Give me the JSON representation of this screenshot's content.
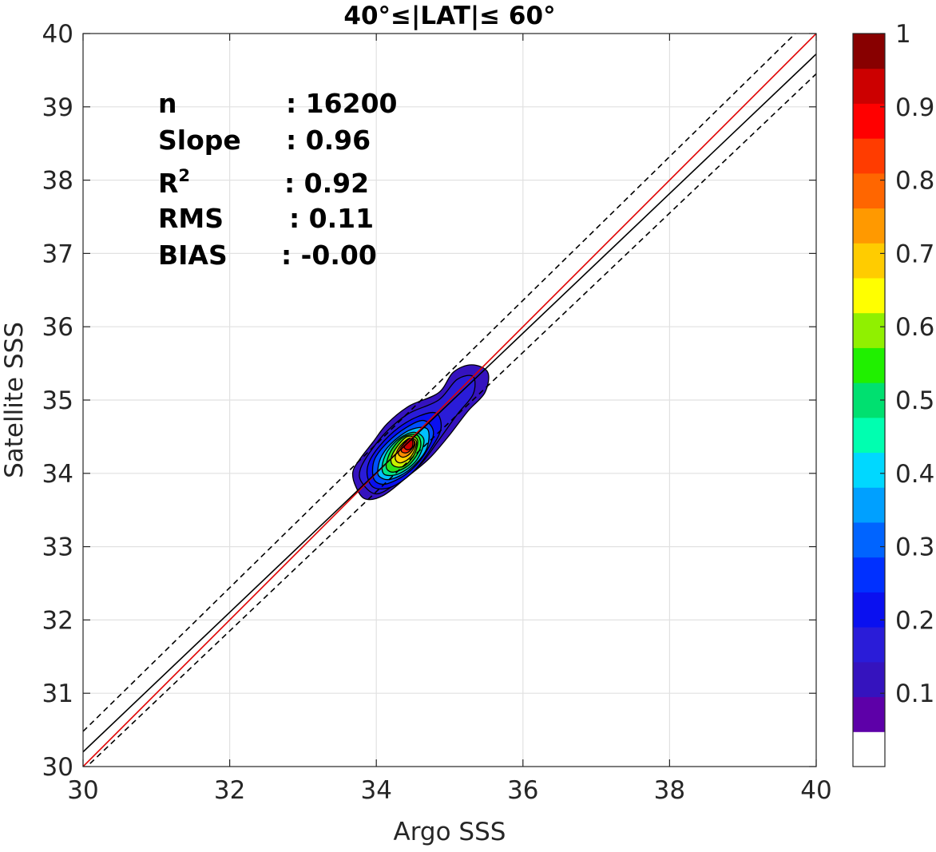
{
  "chart_data": {
    "type": "contour",
    "title": "40°≤|LAT|≤ 60°",
    "xlabel": "Argo SSS",
    "ylabel": "Satellite SSS",
    "xlim": [
      30,
      40
    ],
    "ylim": [
      30,
      40
    ],
    "x_ticks": [
      30,
      32,
      34,
      36,
      38,
      40
    ],
    "y_ticks": [
      30,
      31,
      32,
      33,
      34,
      35,
      36,
      37,
      38,
      39,
      40
    ],
    "grid": true,
    "stats": [
      {
        "label": "n",
        "sup": "",
        "value": ": 16200"
      },
      {
        "label": "Slope",
        "sup": "",
        "value": ": 0.96"
      },
      {
        "label": "R",
        "sup": "2",
        "value": ": 0.92"
      },
      {
        "label": "RMS",
        "sup": "",
        "value": ": 0.11"
      },
      {
        "label": "BIAS",
        "sup": "",
        "value": ": -0.00"
      }
    ],
    "lines": [
      {
        "role": "one-to-one",
        "color": "#e00000",
        "style": "solid",
        "points": [
          [
            30,
            30
          ],
          [
            40,
            40
          ]
        ]
      },
      {
        "role": "regression",
        "color": "#000000",
        "style": "solid",
        "points": [
          [
            30,
            30.2
          ],
          [
            40,
            39.72
          ]
        ]
      },
      {
        "role": "upper-bound",
        "color": "#000000",
        "style": "dashed",
        "points": [
          [
            30,
            30.48
          ],
          [
            40,
            40.28
          ]
        ]
      },
      {
        "role": "lower-bound",
        "color": "#000000",
        "style": "dashed",
        "points": [
          [
            30,
            29.95
          ],
          [
            40,
            39.45
          ]
        ]
      }
    ],
    "density_peak": {
      "x": 34.4,
      "y": 34.4
    },
    "contour_levels": [
      {
        "level": 0.05,
        "color": "#3513be",
        "path": [
          [
            33.72,
            33.82
          ],
          [
            33.68,
            34.02
          ],
          [
            33.78,
            34.2
          ],
          [
            33.95,
            34.42
          ],
          [
            34.15,
            34.68
          ],
          [
            34.45,
            34.92
          ],
          [
            34.85,
            35.1
          ],
          [
            35.05,
            35.38
          ],
          [
            35.3,
            35.48
          ],
          [
            35.52,
            35.38
          ],
          [
            35.48,
            35.1
          ],
          [
            35.25,
            34.85
          ],
          [
            34.98,
            34.5
          ],
          [
            34.72,
            34.2
          ],
          [
            34.42,
            33.95
          ],
          [
            34.1,
            33.7
          ],
          [
            33.85,
            33.65
          ]
        ]
      },
      {
        "level": 0.1,
        "color": "#2a1cd8",
        "path": [
          [
            33.8,
            33.88
          ],
          [
            33.78,
            34.05
          ],
          [
            33.92,
            34.3
          ],
          [
            34.15,
            34.58
          ],
          [
            34.45,
            34.82
          ],
          [
            34.85,
            35.0
          ],
          [
            35.1,
            35.28
          ],
          [
            35.32,
            35.32
          ],
          [
            35.32,
            35.08
          ],
          [
            35.1,
            34.8
          ],
          [
            34.85,
            34.45
          ],
          [
            34.6,
            34.12
          ],
          [
            34.3,
            33.88
          ],
          [
            34.0,
            33.72
          ]
        ]
      },
      {
        "level": 0.2,
        "color": "#0a10f0",
        "path": [
          [
            33.88,
            33.95
          ],
          [
            33.9,
            34.15
          ],
          [
            34.05,
            34.38
          ],
          [
            34.3,
            34.62
          ],
          [
            34.58,
            34.78
          ],
          [
            34.82,
            34.82
          ],
          [
            34.88,
            34.6
          ],
          [
            34.72,
            34.3
          ],
          [
            34.5,
            34.02
          ],
          [
            34.22,
            33.82
          ],
          [
            33.98,
            33.8
          ]
        ]
      },
      {
        "level": 0.3,
        "color": "#0050ff",
        "path": [
          [
            33.95,
            34.0
          ],
          [
            33.98,
            34.2
          ],
          [
            34.15,
            34.42
          ],
          [
            34.4,
            34.62
          ],
          [
            34.65,
            34.72
          ],
          [
            34.78,
            34.55
          ],
          [
            34.65,
            34.25
          ],
          [
            34.42,
            34.0
          ],
          [
            34.15,
            33.86
          ],
          [
            34.0,
            33.88
          ]
        ]
      },
      {
        "level": 0.4,
        "color": "#00c0ff",
        "path": [
          [
            34.02,
            34.05
          ],
          [
            34.08,
            34.25
          ],
          [
            34.25,
            34.45
          ],
          [
            34.48,
            34.6
          ],
          [
            34.7,
            34.6
          ],
          [
            34.68,
            34.32
          ],
          [
            34.45,
            34.05
          ],
          [
            34.2,
            33.92
          ],
          [
            34.05,
            33.95
          ]
        ]
      },
      {
        "level": 0.5,
        "color": "#00e68a",
        "path": [
          [
            34.08,
            34.1
          ],
          [
            34.15,
            34.3
          ],
          [
            34.32,
            34.48
          ],
          [
            34.52,
            34.56
          ],
          [
            34.65,
            34.45
          ],
          [
            34.55,
            34.18
          ],
          [
            34.32,
            34.0
          ],
          [
            34.12,
            33.98
          ]
        ]
      },
      {
        "level": 0.6,
        "color": "#2ce01a",
        "path": [
          [
            34.14,
            34.15
          ],
          [
            34.22,
            34.34
          ],
          [
            34.38,
            34.5
          ],
          [
            34.56,
            34.52
          ],
          [
            34.6,
            34.35
          ],
          [
            34.45,
            34.12
          ],
          [
            34.25,
            34.02
          ],
          [
            34.15,
            34.05
          ]
        ]
      },
      {
        "level": 0.7,
        "color": "#c8f000",
        "path": [
          [
            34.2,
            34.2
          ],
          [
            34.28,
            34.36
          ],
          [
            34.42,
            34.5
          ],
          [
            34.56,
            34.46
          ],
          [
            34.52,
            34.26
          ],
          [
            34.38,
            34.1
          ],
          [
            34.24,
            34.1
          ]
        ]
      },
      {
        "level": 0.75,
        "color": "#ffd000",
        "path": [
          [
            34.26,
            34.24
          ],
          [
            34.33,
            34.38
          ],
          [
            34.46,
            34.48
          ],
          [
            34.55,
            34.42
          ],
          [
            34.48,
            34.24
          ],
          [
            34.36,
            34.15
          ],
          [
            34.28,
            34.16
          ]
        ]
      },
      {
        "level": 0.8,
        "color": "#ff8a00",
        "path": [
          [
            34.3,
            34.28
          ],
          [
            34.37,
            34.4
          ],
          [
            34.47,
            34.47
          ],
          [
            34.53,
            34.4
          ],
          [
            34.46,
            34.27
          ],
          [
            34.36,
            34.22
          ]
        ]
      },
      {
        "level": 0.9,
        "color": "#ff3000",
        "path": [
          [
            34.34,
            34.32
          ],
          [
            34.4,
            34.44
          ],
          [
            34.48,
            34.48
          ],
          [
            34.52,
            34.4
          ],
          [
            34.45,
            34.3
          ],
          [
            34.38,
            34.28
          ]
        ]
      },
      {
        "level": 0.95,
        "color": "#cc0000",
        "path": [
          [
            34.38,
            34.36
          ],
          [
            34.43,
            34.46
          ],
          [
            34.49,
            34.45
          ],
          [
            34.49,
            34.36
          ],
          [
            34.43,
            34.32
          ]
        ]
      }
    ],
    "colorbar": {
      "colors": [
        "#ffffff",
        "#5d00a8",
        "#3513be",
        "#2a1cd8",
        "#0a10f0",
        "#0030ff",
        "#0064ff",
        "#00a0ff",
        "#00d8ff",
        "#00ffb0",
        "#00e070",
        "#20f000",
        "#90f000",
        "#ffff00",
        "#ffcc00",
        "#ff9900",
        "#ff6600",
        "#ff3c00",
        "#ff0000",
        "#cc0000",
        "#880000"
      ],
      "tick_values": [
        0.1,
        0.2,
        0.3,
        0.4,
        0.5,
        0.6,
        0.7,
        0.8,
        0.9,
        1
      ],
      "tick_labels": [
        "0.1",
        "0.2",
        "0.3",
        "0.4",
        "0.5",
        "0.6",
        "0.7",
        "0.8",
        "0.9",
        "1"
      ],
      "range": [
        0,
        1
      ]
    }
  }
}
